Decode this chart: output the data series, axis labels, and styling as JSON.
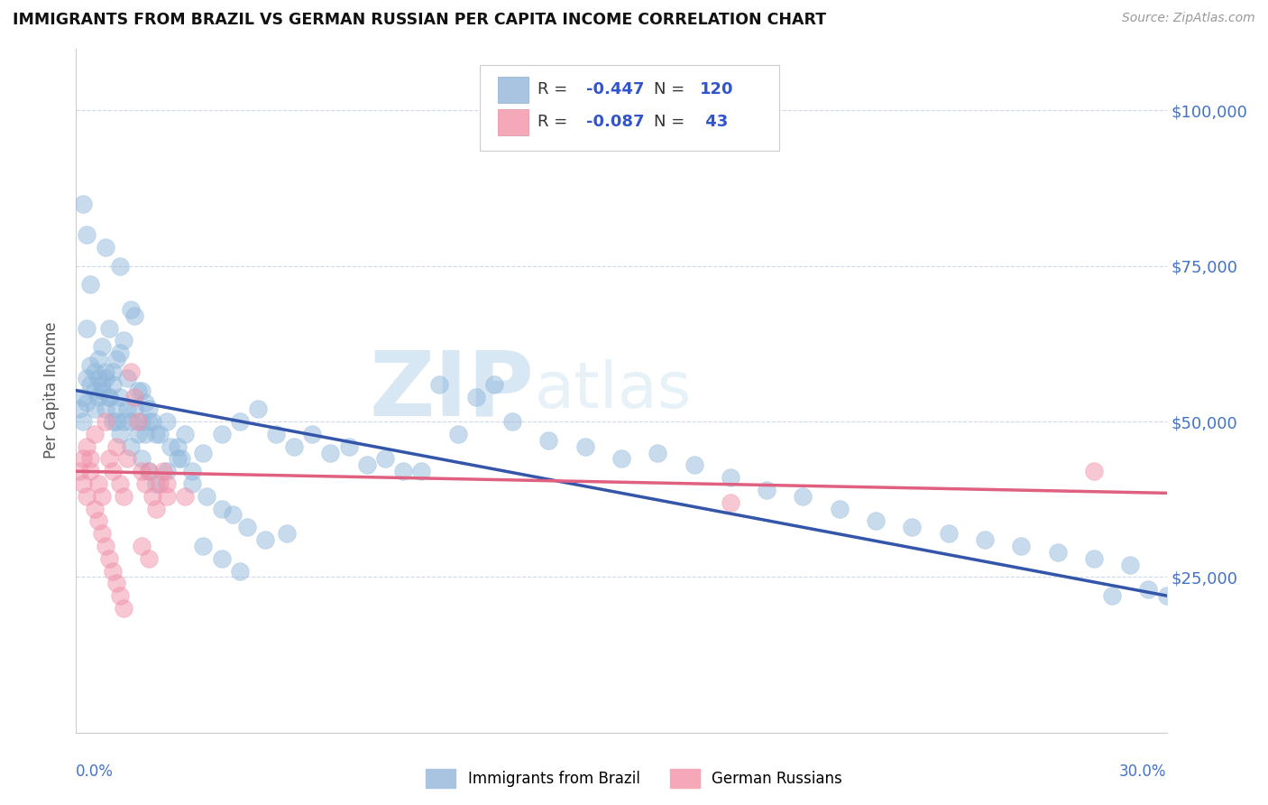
{
  "title": "IMMIGRANTS FROM BRAZIL VS GERMAN RUSSIAN PER CAPITA INCOME CORRELATION CHART",
  "source": "Source: ZipAtlas.com",
  "ylabel": "Per Capita Income",
  "yticks": [
    0,
    25000,
    50000,
    75000,
    100000
  ],
  "ytick_labels": [
    "",
    "$25,000",
    "$50,000",
    "$75,000",
    "$100,000"
  ],
  "xlim": [
    0.0,
    0.3
  ],
  "ylim": [
    0,
    110000
  ],
  "brazil_color": "#90b8dc",
  "german_color": "#f090a8",
  "brazil_line_color": "#3355aa",
  "german_line_color": "#e06080",
  "brazil_line": [
    [
      0.0,
      55000
    ],
    [
      0.3,
      22000
    ]
  ],
  "german_line": [
    [
      0.0,
      42000
    ],
    [
      0.3,
      38500
    ]
  ],
  "watermark_zip": "ZIP",
  "watermark_atlas": "atlas",
  "brazil_points": [
    [
      0.005,
      52000
    ],
    [
      0.008,
      57000
    ],
    [
      0.012,
      61000
    ],
    [
      0.015,
      68000
    ],
    [
      0.003,
      65000
    ],
    [
      0.007,
      55000
    ],
    [
      0.01,
      58000
    ],
    [
      0.004,
      72000
    ],
    [
      0.006,
      60000
    ],
    [
      0.009,
      54000
    ],
    [
      0.011,
      50000
    ],
    [
      0.013,
      63000
    ],
    [
      0.016,
      67000
    ],
    [
      0.018,
      55000
    ],
    [
      0.02,
      52000
    ],
    [
      0.022,
      48000
    ],
    [
      0.025,
      50000
    ],
    [
      0.028,
      46000
    ],
    [
      0.03,
      48000
    ],
    [
      0.035,
      45000
    ],
    [
      0.002,
      85000
    ],
    [
      0.003,
      80000
    ],
    [
      0.008,
      78000
    ],
    [
      0.012,
      75000
    ],
    [
      0.005,
      58000
    ],
    [
      0.007,
      62000
    ],
    [
      0.009,
      65000
    ],
    [
      0.011,
      60000
    ],
    [
      0.014,
      57000
    ],
    [
      0.017,
      55000
    ],
    [
      0.019,
      53000
    ],
    [
      0.021,
      50000
    ],
    [
      0.023,
      48000
    ],
    [
      0.026,
      46000
    ],
    [
      0.029,
      44000
    ],
    [
      0.032,
      42000
    ],
    [
      0.04,
      48000
    ],
    [
      0.045,
      50000
    ],
    [
      0.05,
      52000
    ],
    [
      0.055,
      48000
    ],
    [
      0.06,
      46000
    ],
    [
      0.07,
      45000
    ],
    [
      0.08,
      43000
    ],
    [
      0.09,
      42000
    ],
    [
      0.1,
      56000
    ],
    [
      0.11,
      54000
    ],
    [
      0.115,
      56000
    ],
    [
      0.12,
      50000
    ],
    [
      0.105,
      48000
    ],
    [
      0.13,
      47000
    ],
    [
      0.14,
      46000
    ],
    [
      0.15,
      44000
    ],
    [
      0.002,
      50000
    ],
    [
      0.003,
      53000
    ],
    [
      0.004,
      56000
    ],
    [
      0.006,
      54000
    ],
    [
      0.008,
      52000
    ],
    [
      0.01,
      50000
    ],
    [
      0.012,
      48000
    ],
    [
      0.015,
      46000
    ],
    [
      0.018,
      44000
    ],
    [
      0.02,
      42000
    ],
    [
      0.022,
      40000
    ],
    [
      0.025,
      42000
    ],
    [
      0.028,
      44000
    ],
    [
      0.032,
      40000
    ],
    [
      0.036,
      38000
    ],
    [
      0.04,
      36000
    ],
    [
      0.001,
      52000
    ],
    [
      0.002,
      54000
    ],
    [
      0.003,
      57000
    ],
    [
      0.004,
      59000
    ],
    [
      0.005,
      55000
    ],
    [
      0.006,
      57000
    ],
    [
      0.007,
      56000
    ],
    [
      0.008,
      58000
    ],
    [
      0.009,
      54000
    ],
    [
      0.01,
      56000
    ],
    [
      0.011,
      52000
    ],
    [
      0.012,
      54000
    ],
    [
      0.013,
      50000
    ],
    [
      0.014,
      52000
    ],
    [
      0.015,
      50000
    ],
    [
      0.016,
      52000
    ],
    [
      0.017,
      48000
    ],
    [
      0.018,
      50000
    ],
    [
      0.019,
      48000
    ],
    [
      0.02,
      50000
    ],
    [
      0.035,
      30000
    ],
    [
      0.04,
      28000
    ],
    [
      0.045,
      26000
    ],
    [
      0.16,
      45000
    ],
    [
      0.17,
      43000
    ],
    [
      0.18,
      41000
    ],
    [
      0.19,
      39000
    ],
    [
      0.2,
      38000
    ],
    [
      0.21,
      36000
    ],
    [
      0.22,
      34000
    ],
    [
      0.23,
      33000
    ],
    [
      0.24,
      32000
    ],
    [
      0.25,
      31000
    ],
    [
      0.26,
      30000
    ],
    [
      0.27,
      29000
    ],
    [
      0.28,
      28000
    ],
    [
      0.29,
      27000
    ],
    [
      0.3,
      22000
    ],
    [
      0.285,
      22000
    ],
    [
      0.295,
      23000
    ],
    [
      0.065,
      48000
    ],
    [
      0.075,
      46000
    ],
    [
      0.085,
      44000
    ],
    [
      0.095,
      42000
    ],
    [
      0.043,
      35000
    ],
    [
      0.047,
      33000
    ],
    [
      0.052,
      31000
    ],
    [
      0.058,
      32000
    ]
  ],
  "german_points": [
    [
      0.002,
      44000
    ],
    [
      0.003,
      46000
    ],
    [
      0.004,
      42000
    ],
    [
      0.005,
      48000
    ],
    [
      0.006,
      40000
    ],
    [
      0.007,
      38000
    ],
    [
      0.008,
      50000
    ],
    [
      0.009,
      44000
    ],
    [
      0.01,
      42000
    ],
    [
      0.011,
      46000
    ],
    [
      0.012,
      40000
    ],
    [
      0.013,
      38000
    ],
    [
      0.014,
      44000
    ],
    [
      0.015,
      58000
    ],
    [
      0.016,
      54000
    ],
    [
      0.017,
      50000
    ],
    [
      0.018,
      42000
    ],
    [
      0.019,
      40000
    ],
    [
      0.02,
      42000
    ],
    [
      0.021,
      38000
    ],
    [
      0.022,
      36000
    ],
    [
      0.023,
      40000
    ],
    [
      0.024,
      42000
    ],
    [
      0.025,
      38000
    ],
    [
      0.001,
      42000
    ],
    [
      0.002,
      40000
    ],
    [
      0.003,
      38000
    ],
    [
      0.004,
      44000
    ],
    [
      0.005,
      36000
    ],
    [
      0.006,
      34000
    ],
    [
      0.007,
      32000
    ],
    [
      0.008,
      30000
    ],
    [
      0.009,
      28000
    ],
    [
      0.01,
      26000
    ],
    [
      0.011,
      24000
    ],
    [
      0.012,
      22000
    ],
    [
      0.013,
      20000
    ],
    [
      0.018,
      30000
    ],
    [
      0.02,
      28000
    ],
    [
      0.025,
      40000
    ],
    [
      0.03,
      38000
    ],
    [
      0.28,
      42000
    ],
    [
      0.18,
      37000
    ]
  ]
}
